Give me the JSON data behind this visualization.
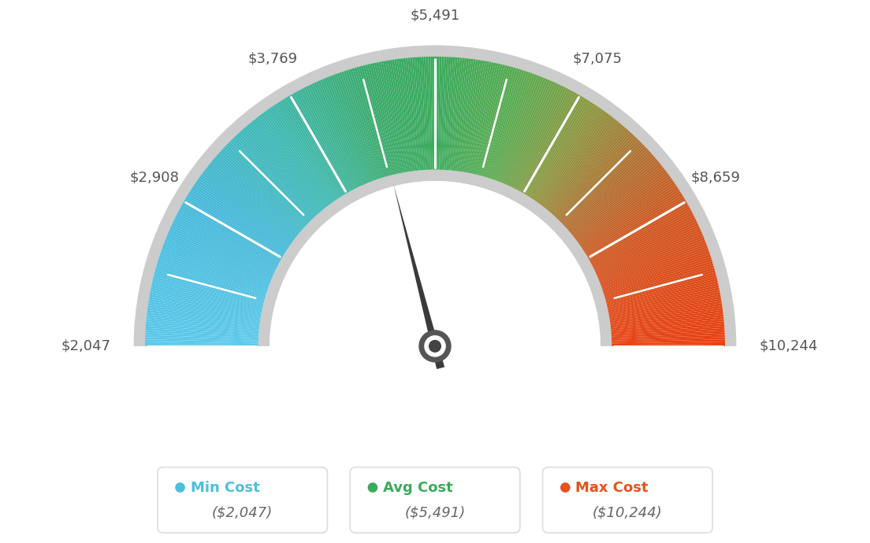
{
  "min_val": 2047,
  "max_val": 10244,
  "avg_val": 5491,
  "label_texts": [
    "$2,047",
    "$2,908",
    "$3,769",
    "$5,491",
    "$7,075",
    "$8,659",
    "$10,244"
  ],
  "legend": [
    {
      "label": "Min Cost",
      "value": "($2,047)",
      "color": "#4bbfde"
    },
    {
      "label": "Avg Cost",
      "value": "($5,491)",
      "color": "#3aaa5c"
    },
    {
      "label": "Max Cost",
      "value": "($10,244)",
      "color": "#e8521a"
    }
  ],
  "arc_colors": [
    [
      0.0,
      "#5bc8ea"
    ],
    [
      0.18,
      "#45b8d8"
    ],
    [
      0.3,
      "#3db8b0"
    ],
    [
      0.42,
      "#3aaa6a"
    ],
    [
      0.5,
      "#3aaa5c"
    ],
    [
      0.6,
      "#5aaa50"
    ],
    [
      0.68,
      "#8a9840"
    ],
    [
      0.76,
      "#b07030"
    ],
    [
      0.84,
      "#d05520"
    ],
    [
      1.0,
      "#e84010"
    ]
  ],
  "background_color": "#ffffff",
  "text_color": "#555555",
  "needle_color": "#444444",
  "rim_color": "#cccccc",
  "tick_color": "#ffffff"
}
